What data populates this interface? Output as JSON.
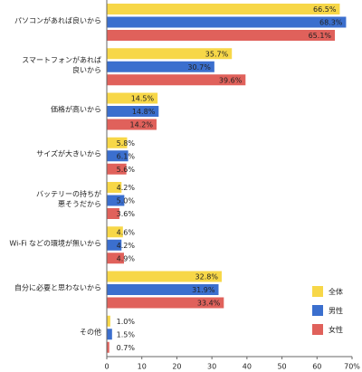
{
  "chart_data": {
    "type": "bar",
    "orientation": "horizontal",
    "categories": [
      "パソコンがあれば良いから",
      "スマートフォンがあれば\n良いから",
      "価格が高いから",
      "サイズが大きいから",
      "バッテリーの持ちが\n悪そうだから",
      "Wi-Fi などの環境が無いから",
      "自分に必要と思わないから",
      "その他"
    ],
    "series": [
      {
        "name": "全体",
        "color": "#f7d748",
        "values": [
          66.5,
          35.7,
          14.5,
          5.8,
          4.2,
          4.6,
          32.8,
          1.0
        ],
        "value_labels": [
          "66.5%",
          "35.7%",
          "14.5%",
          "5.8%",
          "4.2%",
          "4.6%",
          "32.8%",
          "1.0%"
        ]
      },
      {
        "name": "男性",
        "color": "#3b6fce",
        "values": [
          68.3,
          30.7,
          14.8,
          6.1,
          5.0,
          4.2,
          31.9,
          1.5
        ],
        "value_labels": [
          "68.3%",
          "30.7%",
          "14.8%",
          "6.1%",
          "5.0%",
          "4.2%",
          "31.9%",
          "1.5%"
        ]
      },
      {
        "name": "女性",
        "color": "#e0615b",
        "values": [
          65.1,
          39.6,
          14.2,
          5.6,
          3.6,
          4.9,
          33.4,
          0.7
        ],
        "value_labels": [
          "65.1%",
          "39.6%",
          "14.2%",
          "5.6%",
          "3.6%",
          "4.9%",
          "33.4%",
          "0.7%"
        ]
      }
    ],
    "xlim": [
      0,
      70
    ],
    "xticks": [
      0,
      10,
      20,
      30,
      40,
      50,
      60,
      {
        "value": 70,
        "label": "70%"
      }
    ],
    "legend": "lower-right"
  }
}
